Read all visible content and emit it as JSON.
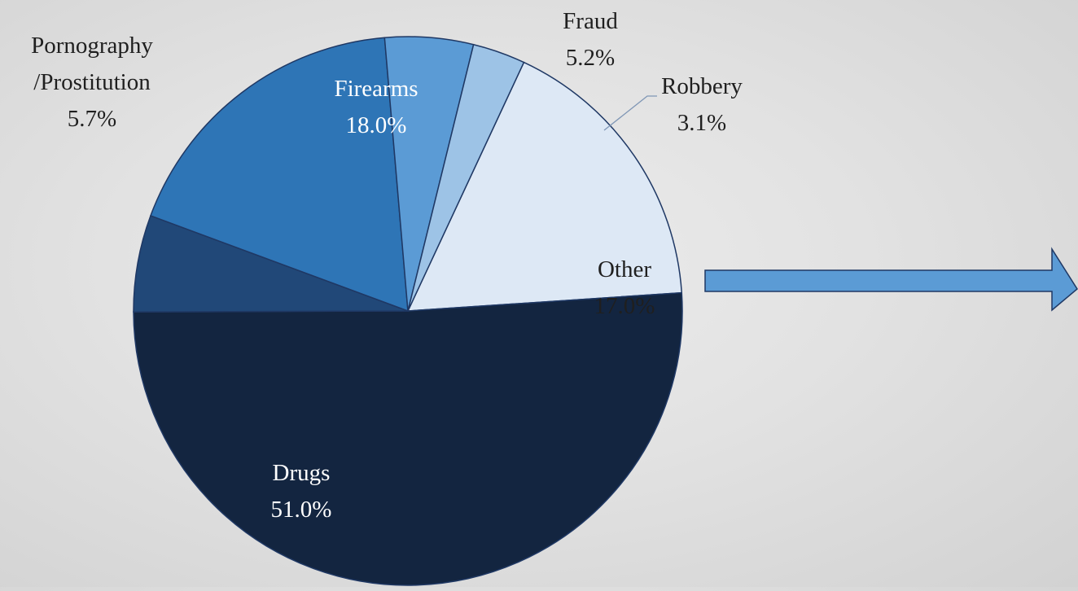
{
  "chart_data": {
    "type": "pie",
    "title": "",
    "slices": [
      {
        "label": "Other",
        "value": 17.0,
        "value_label": "17.0%",
        "color": "#dde8f5",
        "text_color": "#1f1f1f"
      },
      {
        "label": "Drugs",
        "value": 51.0,
        "value_label": "51.0%",
        "color": "#132540",
        "text_color": "#ffffff"
      },
      {
        "label": "Pornography/Prostitution",
        "label_lines": [
          "Pornography",
          "/Prostitution"
        ],
        "value": 5.7,
        "value_label": "5.7%",
        "color": "#214878",
        "text_color": "#1f1f1f"
      },
      {
        "label": "Firearms",
        "value": 18.0,
        "value_label": "18.0%",
        "color": "#2e75b6",
        "text_color": "#ffffff"
      },
      {
        "label": "Fraud",
        "value": 5.2,
        "value_label": "5.2%",
        "color": "#5b9bd5",
        "text_color": "#1f1f1f"
      },
      {
        "label": "Robbery",
        "value": 3.1,
        "value_label": "3.1%",
        "color": "#9dc3e6",
        "text_color": "#1f1f1f"
      }
    ],
    "border_color": "#1f3864",
    "arrow_color": "#5b9bd5"
  }
}
